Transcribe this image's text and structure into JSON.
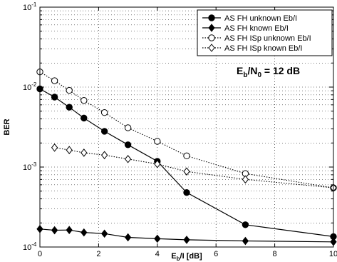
{
  "chart_data": {
    "type": "line",
    "title": "",
    "xlabel": "",
    "xlabel_parts": {
      "base": "E",
      "sub": "b",
      "rest": "/I [dB]"
    },
    "ylabel": "BER",
    "xlim": [
      0,
      10
    ],
    "ylim": [
      0.0001,
      0.1
    ],
    "yscale": "log",
    "grid": true,
    "legend_position": "top-right",
    "x_ticks": [
      0,
      2,
      4,
      6,
      8,
      10
    ],
    "x_tick_labels": [
      "0",
      "2",
      "4",
      "6",
      "8",
      "10"
    ],
    "y_tick_exponents": [
      -4,
      -3,
      -2,
      -1
    ],
    "y_tick_base": "10",
    "annotation": {
      "base1": "E",
      "sub1": "b",
      "mid": "/N",
      "sub2": "0",
      "rest": " = 12 dB"
    },
    "series": [
      {
        "name": "AS FH unknown Eb/I",
        "marker": "circle-filled",
        "line": "solid",
        "color": "#000000",
        "x": [
          0,
          0.5,
          1,
          1.5,
          2.2,
          3,
          4,
          5,
          7,
          10
        ],
        "y": [
          0.0095,
          0.0075,
          0.0056,
          0.0041,
          0.0028,
          0.0019,
          0.00118,
          0.00048,
          0.00019,
          0.000135
        ]
      },
      {
        "name": "AS FH known Eb/I",
        "marker": "diamond-filled",
        "line": "solid",
        "color": "#000000",
        "x": [
          0,
          0.5,
          1,
          1.5,
          2.2,
          3,
          4,
          5,
          7,
          10
        ],
        "y": [
          0.000168,
          0.000162,
          0.000163,
          0.000152,
          0.000147,
          0.000132,
          0.000127,
          0.000123,
          0.000119,
          0.000116
        ]
      },
      {
        "name": "AS FH ISp unknown Eb/I",
        "marker": "circle-open",
        "line": "dotted",
        "color": "#000000",
        "x": [
          0,
          0.5,
          1,
          1.5,
          2.2,
          3,
          4,
          5,
          7,
          10
        ],
        "y": [
          0.0155,
          0.012,
          0.0091,
          0.0068,
          0.0048,
          0.0031,
          0.0021,
          0.00138,
          0.00083,
          0.00055
        ]
      },
      {
        "name": "AS FH ISp known Eb/I",
        "marker": "diamond-open",
        "line": "dotted",
        "color": "#000000",
        "x": [
          0.5,
          1,
          1.5,
          2.2,
          3,
          4,
          5,
          7,
          10
        ],
        "y": [
          0.00175,
          0.00163,
          0.00151,
          0.00141,
          0.00126,
          0.00109,
          0.00088,
          0.0007,
          0.00055
        ]
      }
    ]
  }
}
